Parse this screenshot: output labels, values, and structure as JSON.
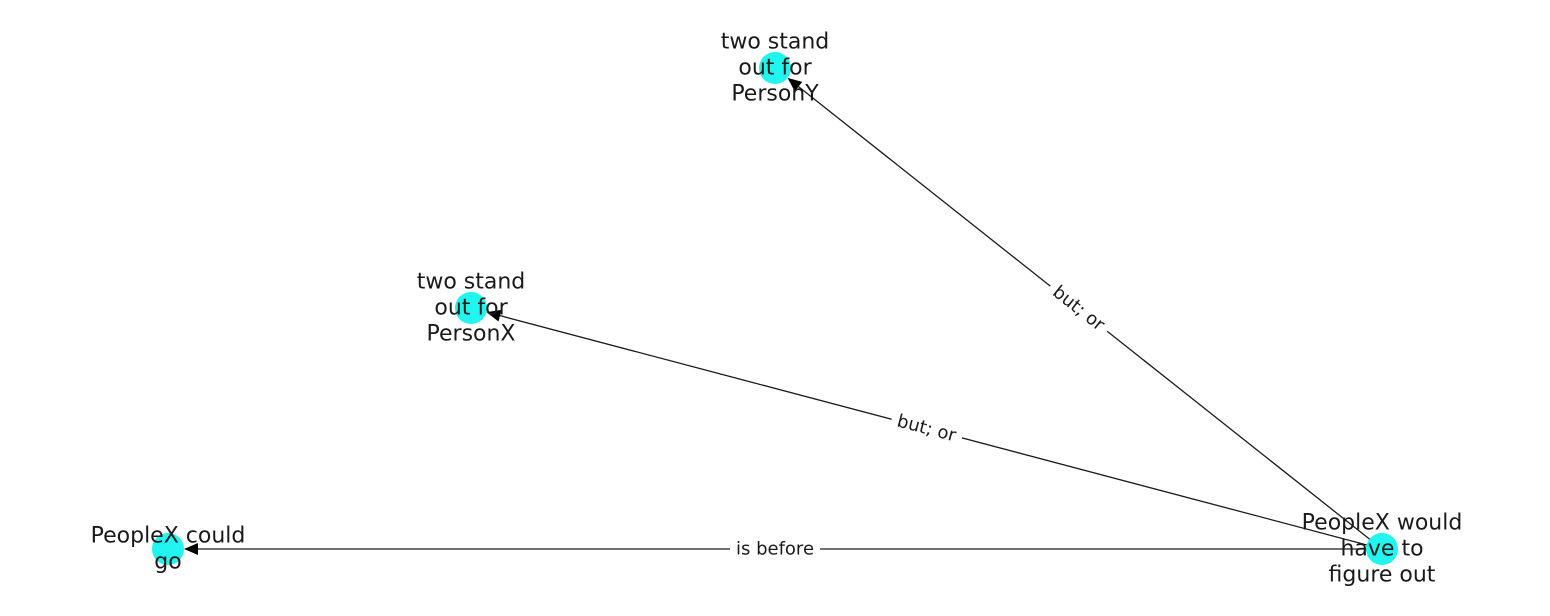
{
  "colors": {
    "node": "#22f5f0",
    "edge": "#1a1a1a",
    "arrow": "#000000"
  },
  "nodes": [
    {
      "id": "n_y",
      "lines": [
        "two stand",
        "out for",
        "PersonY"
      ]
    },
    {
      "id": "n_x",
      "lines": [
        "two stand",
        "out for",
        "PersonX"
      ]
    },
    {
      "id": "n_go",
      "lines": [
        "PeopleX could",
        "go"
      ]
    },
    {
      "id": "n_fig",
      "lines": [
        "PeopleX would",
        "have to",
        "figure out"
      ]
    }
  ],
  "edges": [
    {
      "source": "n_fig",
      "target": "n_y",
      "label": "but;  or"
    },
    {
      "source": "n_fig",
      "target": "n_x",
      "label": "but;  or"
    },
    {
      "source": "n_fig",
      "target": "n_go",
      "label": "is before"
    }
  ]
}
